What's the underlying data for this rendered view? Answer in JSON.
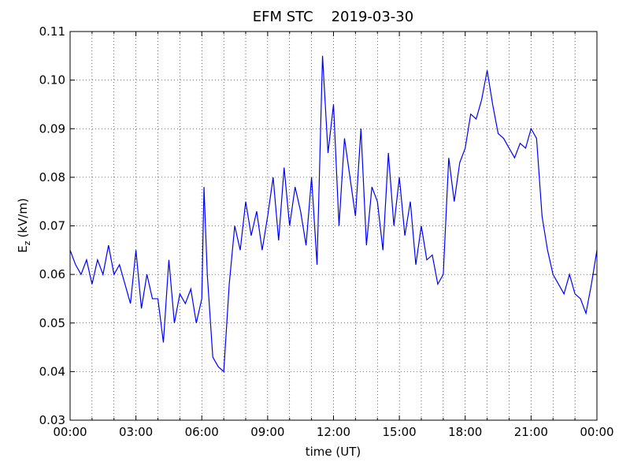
{
  "chart_data": {
    "type": "line",
    "title": "EFM STC    2019-03-30",
    "xlabel": "time (UT)",
    "ylabel_base": "E",
    "ylabel_sub": "z",
    "ylabel_unit": "(kV/m)",
    "xlim": [
      0,
      24
    ],
    "ylim": [
      0.03,
      0.11
    ],
    "xticks": [
      {
        "value": 0,
        "label": "00:00"
      },
      {
        "value": 3,
        "label": "03:00"
      },
      {
        "value": 6,
        "label": "06:00"
      },
      {
        "value": 9,
        "label": "09:00"
      },
      {
        "value": 12,
        "label": "12:00"
      },
      {
        "value": 15,
        "label": "15:00"
      },
      {
        "value": 18,
        "label": "18:00"
      },
      {
        "value": 21,
        "label": "21:00"
      },
      {
        "value": 24,
        "label": "00:00"
      }
    ],
    "xminor_ticks": [
      1,
      2,
      4,
      5,
      7,
      8,
      10,
      11,
      13,
      14,
      16,
      17,
      19,
      20,
      22,
      23
    ],
    "yticks": [
      0.03,
      0.04,
      0.05,
      0.06,
      0.07,
      0.08,
      0.09,
      {
        "value": 0.1,
        "label": "0.10"
      },
      0.11
    ],
    "grid": true,
    "series": [
      {
        "name": "Ez",
        "color": "#0000ff",
        "x": [
          0,
          0.25,
          0.5,
          0.75,
          1,
          1.25,
          1.5,
          1.75,
          2,
          2.25,
          2.5,
          2.75,
          3,
          3.25,
          3.5,
          3.75,
          4,
          4.25,
          4.5,
          4.75,
          5,
          5.25,
          5.5,
          5.75,
          6,
          6.1,
          6.25,
          6.5,
          6.75,
          7,
          7.25,
          7.5,
          7.75,
          8,
          8.25,
          8.5,
          8.75,
          9,
          9.25,
          9.5,
          9.75,
          10,
          10.25,
          10.5,
          10.75,
          11,
          11.25,
          11.5,
          11.75,
          12,
          12.25,
          12.5,
          12.75,
          13,
          13.25,
          13.5,
          13.75,
          14,
          14.25,
          14.5,
          14.75,
          15,
          15.25,
          15.5,
          15.75,
          16,
          16.25,
          16.5,
          16.75,
          17,
          17.25,
          17.5,
          17.75,
          18,
          18.25,
          18.5,
          18.75,
          19,
          19.25,
          19.5,
          19.75,
          20,
          20.25,
          20.5,
          20.75,
          21,
          21.25,
          21.5,
          21.75,
          22,
          22.25,
          22.5,
          22.75,
          23,
          23.25,
          23.5,
          23.75,
          24
        ],
        "values": [
          0.065,
          0.062,
          0.06,
          0.063,
          0.058,
          0.063,
          0.06,
          0.066,
          0.06,
          0.062,
          0.058,
          0.054,
          0.065,
          0.053,
          0.06,
          0.055,
          0.055,
          0.046,
          0.063,
          0.05,
          0.056,
          0.054,
          0.057,
          0.05,
          0.055,
          0.078,
          0.06,
          0.043,
          0.041,
          0.04,
          0.058,
          0.07,
          0.065,
          0.075,
          0.068,
          0.073,
          0.065,
          0.072,
          0.08,
          0.067,
          0.082,
          0.07,
          0.078,
          0.073,
          0.066,
          0.08,
          0.062,
          0.105,
          0.085,
          0.095,
          0.07,
          0.088,
          0.08,
          0.072,
          0.09,
          0.066,
          0.078,
          0.075,
          0.065,
          0.085,
          0.07,
          0.08,
          0.068,
          0.075,
          0.062,
          0.07,
          0.063,
          0.064,
          0.058,
          0.06,
          0.084,
          0.075,
          0.083,
          0.086,
          0.093,
          0.092,
          0.096,
          0.102,
          0.095,
          0.089,
          0.088,
          0.086,
          0.084,
          0.087,
          0.086,
          0.09,
          0.088,
          0.072,
          0.065,
          0.06,
          0.058,
          0.056,
          0.06,
          0.056,
          0.055,
          0.052,
          0.058,
          0.065
        ]
      }
    ]
  }
}
